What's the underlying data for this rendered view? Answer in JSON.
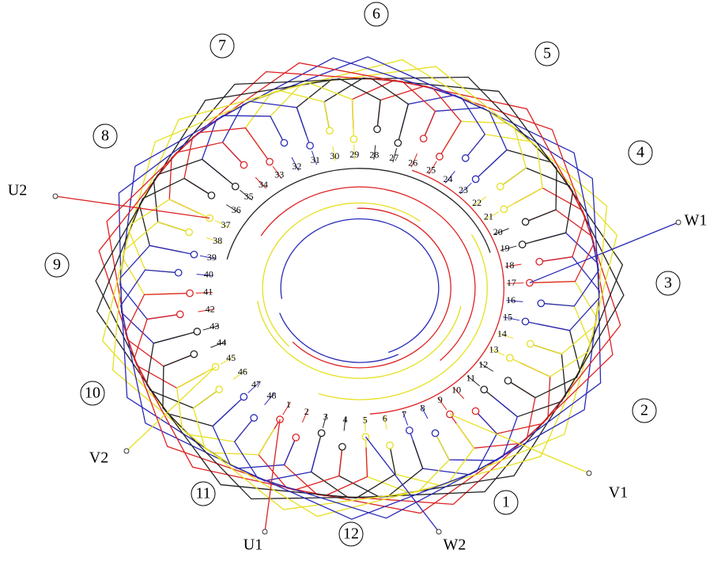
{
  "regions": [
    1,
    2,
    3,
    4,
    5,
    6,
    7,
    8,
    9,
    10,
    11,
    12
  ],
  "slots": [
    1,
    2,
    3,
    4,
    5,
    6,
    7,
    8,
    9,
    10,
    11,
    12,
    13,
    14,
    15,
    16,
    17,
    18,
    19,
    20,
    21,
    22,
    23,
    24,
    25,
    26,
    27,
    28,
    29,
    30,
    31,
    32,
    33,
    34,
    35,
    36,
    37,
    38,
    39,
    40,
    41,
    42,
    43,
    44,
    45,
    46,
    47,
    48
  ],
  "terminals": [
    "U1",
    "U2",
    "V1",
    "V2",
    "W1",
    "W2"
  ]
}
